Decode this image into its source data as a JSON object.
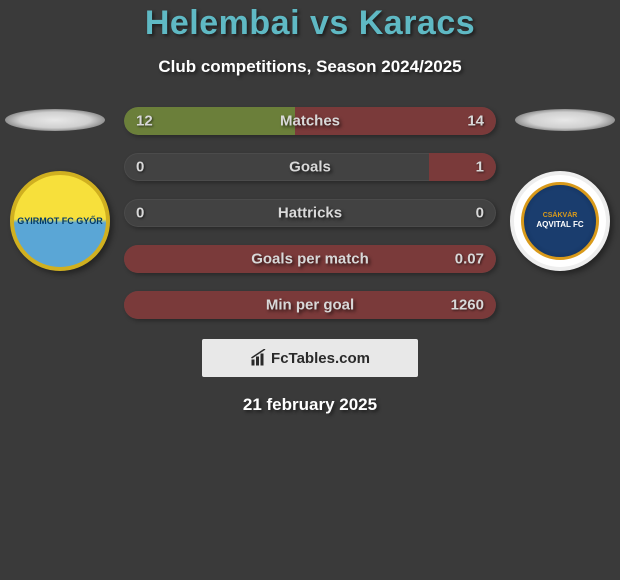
{
  "title": "Helembai vs Karacs",
  "subtitle": "Club competitions, Season 2024/2025",
  "date": "21 february 2025",
  "footer_brand": "FcTables.com",
  "colors": {
    "background": "#3a3a3a",
    "title": "#5fb9c4",
    "fill_left": "#6b7f3a",
    "fill_right": "#7a3a3a",
    "pill_bg": "#424242",
    "footer_bg": "#e8e8e8"
  },
  "team_left": {
    "name": "Gyirmot",
    "badge_text": "GYIRMOT FC GYŐR",
    "badge_colors": {
      "top": "#f7e03b",
      "bottom": "#5aa6d6",
      "border": "#d0b020"
    }
  },
  "team_right": {
    "name": "Csakvar",
    "badge_text_top": "CSÁKVÁR",
    "badge_text_main": "AQVITAL FC",
    "badge_colors": {
      "outer": "#ffffff",
      "inner": "#1a3d6e",
      "accent": "#d99a1a"
    }
  },
  "stats": [
    {
      "label": "Matches",
      "left_val": "12",
      "right_val": "14",
      "left_pct": 46,
      "right_pct": 54
    },
    {
      "label": "Goals",
      "left_val": "0",
      "right_val": "1",
      "left_pct": 0,
      "right_pct": 18
    },
    {
      "label": "Hattricks",
      "left_val": "0",
      "right_val": "0",
      "left_pct": 0,
      "right_pct": 0
    },
    {
      "label": "Goals per match",
      "left_val": "",
      "right_val": "0.07",
      "left_pct": 0,
      "right_pct": 100
    },
    {
      "label": "Min per goal",
      "left_val": "",
      "right_val": "1260",
      "left_pct": 0,
      "right_pct": 100
    }
  ]
}
